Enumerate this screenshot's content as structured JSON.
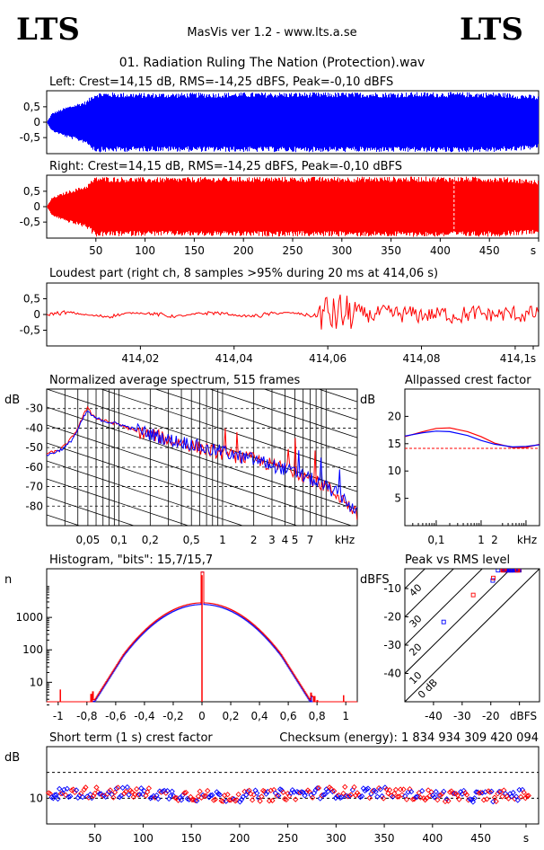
{
  "header": {
    "logo_left": "LTS",
    "logo_right": "LTS",
    "app": "MasVis ver 1.2 - www.lts.a.se",
    "file": "01. Radiation Ruling The Nation (Protection).wav"
  },
  "colors": {
    "left": "#0000ff",
    "right": "#ff0000"
  },
  "chart_data": [
    {
      "type": "line",
      "id": "left-waveform",
      "title": "Left: Crest=14,15 dB, RMS=-14,25 dBFS, Peak=-0,10 dBFS",
      "yticks": [
        "0,5",
        "0",
        "-0,5"
      ],
      "ylim": [
        -1,
        1
      ],
      "xlim": [
        0,
        500
      ],
      "envelope": [
        [
          0,
          0.02
        ],
        [
          5,
          0.3
        ],
        [
          20,
          0.5
        ],
        [
          40,
          0.7
        ],
        [
          47,
          0.92
        ],
        [
          50,
          0.98
        ],
        [
          100,
          0.95
        ],
        [
          200,
          0.97
        ],
        [
          300,
          0.97
        ],
        [
          400,
          0.98
        ],
        [
          460,
          0.97
        ],
        [
          490,
          0.9
        ],
        [
          500,
          0.85
        ]
      ]
    },
    {
      "type": "line",
      "id": "right-waveform",
      "title": "Right: Crest=14,15 dB, RMS=-14,25 dBFS, Peak=-0,10 dBFS",
      "yticks": [
        "0,5",
        "0",
        "-0,5"
      ],
      "xticks": [
        "50",
        "100",
        "150",
        "200",
        "250",
        "300",
        "350",
        "400",
        "450",
        "s"
      ],
      "ylim": [
        -1,
        1
      ],
      "xlim": [
        0,
        500
      ],
      "marker_at": 414.06,
      "envelope": [
        [
          0,
          0.02
        ],
        [
          5,
          0.3
        ],
        [
          20,
          0.5
        ],
        [
          40,
          0.7
        ],
        [
          47,
          0.92
        ],
        [
          50,
          0.98
        ],
        [
          100,
          0.95
        ],
        [
          200,
          0.97
        ],
        [
          300,
          0.97
        ],
        [
          400,
          0.98
        ],
        [
          460,
          0.97
        ],
        [
          490,
          0.9
        ],
        [
          500,
          0.85
        ]
      ]
    },
    {
      "type": "line",
      "id": "loudest-part",
      "title": "Loudest part (right ch, 8 samples >95% during 20 ms at 414,06 s)",
      "yticks": [
        "0,5",
        "0",
        "-0,5"
      ],
      "xticks": [
        "414,02",
        "414,04",
        "414,06",
        "414,08",
        "414,1",
        "s"
      ],
      "xlim": [
        414.0,
        414.105
      ],
      "ylim": [
        -1,
        1
      ]
    },
    {
      "type": "line",
      "id": "spectrum",
      "title": "Normalized average spectrum, 515 frames",
      "ylabel": "dB",
      "yticks": [
        "-30",
        "-40",
        "-50",
        "-60",
        "-70",
        "-80"
      ],
      "xticks": [
        "0,05",
        "0,1",
        "0,2",
        "0,5",
        "1",
        "2",
        "3",
        "4",
        "5",
        "7",
        "kHz"
      ],
      "ylim": [
        -90,
        -20
      ],
      "xlim_khz": [
        0.02,
        20
      ],
      "series": [
        {
          "color": "red",
          "points": [
            [
              0.02,
              -53
            ],
            [
              0.025,
              -52
            ],
            [
              0.03,
              -49
            ],
            [
              0.035,
              -45
            ],
            [
              0.04,
              -40
            ],
            [
              0.045,
              -34
            ],
            [
              0.05,
              -29
            ],
            [
              0.055,
              -33
            ],
            [
              0.06,
              -35
            ],
            [
              0.08,
              -37
            ],
            [
              0.1,
              -38
            ],
            [
              0.15,
              -42
            ],
            [
              0.2,
              -43
            ],
            [
              0.3,
              -46
            ],
            [
              0.5,
              -49
            ],
            [
              0.7,
              -51
            ],
            [
              1,
              -53
            ],
            [
              1.5,
              -55
            ],
            [
              2,
              -56
            ],
            [
              3,
              -59
            ],
            [
              4,
              -60
            ],
            [
              5,
              -62
            ],
            [
              7,
              -66
            ],
            [
              10,
              -70
            ],
            [
              15,
              -77
            ],
            [
              20,
              -85
            ]
          ]
        },
        {
          "color": "blue",
          "points": [
            [
              0.02,
              -54
            ],
            [
              0.025,
              -52
            ],
            [
              0.03,
              -50
            ],
            [
              0.035,
              -46
            ],
            [
              0.04,
              -41
            ],
            [
              0.045,
              -35
            ],
            [
              0.05,
              -31
            ],
            [
              0.055,
              -34
            ],
            [
              0.06,
              -35
            ],
            [
              0.08,
              -37
            ],
            [
              0.1,
              -38
            ],
            [
              0.15,
              -41
            ],
            [
              0.2,
              -43
            ],
            [
              0.3,
              -46
            ],
            [
              0.5,
              -48
            ],
            [
              0.7,
              -51
            ],
            [
              1,
              -52
            ],
            [
              1.5,
              -55
            ],
            [
              2,
              -56
            ],
            [
              3,
              -59
            ],
            [
              4,
              -61
            ],
            [
              5,
              -63
            ],
            [
              7,
              -66
            ],
            [
              10,
              -70
            ],
            [
              15,
              -76
            ],
            [
              20,
              -84
            ]
          ]
        }
      ]
    },
    {
      "type": "line",
      "id": "allpassed-crest",
      "title": "Allpassed crest factor",
      "ylabel": "dB",
      "yticks": [
        "20",
        "15",
        "10",
        "5"
      ],
      "xticks": [
        "0,1",
        "1",
        "2",
        "kHz"
      ],
      "ylim": [
        0,
        25
      ],
      "xlim_khz": [
        0.02,
        20
      ],
      "reference_db": 14.15,
      "series": [
        {
          "color": "red",
          "points": [
            [
              0.02,
              16.3
            ],
            [
              0.05,
              17.2
            ],
            [
              0.1,
              17.8
            ],
            [
              0.2,
              17.9
            ],
            [
              0.5,
              17.2
            ],
            [
              1,
              16.3
            ],
            [
              2,
              15.1
            ],
            [
              5,
              14.3
            ],
            [
              10,
              14.3
            ],
            [
              20,
              14.9
            ]
          ]
        },
        {
          "color": "blue",
          "points": [
            [
              0.02,
              16.4
            ],
            [
              0.05,
              17.0
            ],
            [
              0.1,
              17.3
            ],
            [
              0.2,
              17.2
            ],
            [
              0.5,
              16.5
            ],
            [
              1,
              15.6
            ],
            [
              2,
              14.9
            ],
            [
              5,
              14.4
            ],
            [
              10,
              14.5
            ],
            [
              20,
              14.8
            ]
          ]
        }
      ]
    },
    {
      "type": "line",
      "id": "histogram",
      "title": "Histogram, \"bits\": 15,7/15,7",
      "ylabel": "n",
      "yticks": [
        "1000",
        "100",
        "10"
      ],
      "xticks": [
        "-1",
        "-0,8",
        "-0,6",
        "-0,4",
        "-0,2",
        "0",
        "0,2",
        "0,4",
        "0,6",
        "0,8",
        "1"
      ],
      "xlim": [
        -1.08,
        1.08
      ],
      "ylim_log": [
        0.3,
        1.7
      ]
    },
    {
      "type": "scatter",
      "id": "peak-vs-rms",
      "title": "Peak vs RMS level",
      "ylabel": "dBFS",
      "yticks": [
        "-10",
        "-20",
        "-30",
        "-40"
      ],
      "xticks": [
        "-40",
        "-30",
        "-20",
        "dBFS"
      ],
      "diag_labels": [
        "40",
        "30",
        "20",
        "10",
        "0 dB"
      ],
      "xlim": [
        -50,
        -3
      ],
      "ylim": [
        -50,
        -3
      ]
    },
    {
      "type": "scatter",
      "id": "short-term-crest",
      "title": "Short term (1 s) crest factor",
      "checksum": "Checksum (energy):  1 834 934 309 420 094",
      "ylabel": "dB",
      "yticks": [
        "10"
      ],
      "xticks": [
        "50",
        "100",
        "150",
        "200",
        "250",
        "300",
        "350",
        "400",
        "450",
        "s"
      ],
      "xlim": [
        0,
        510
      ],
      "ylim": [
        0,
        30
      ]
    }
  ]
}
